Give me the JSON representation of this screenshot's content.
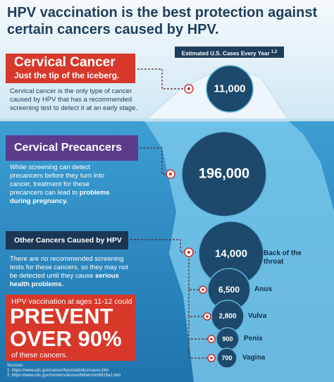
{
  "header": {
    "title": "HPV vaccination is the best protection against certain cancers caused by HPV."
  },
  "cases_label": {
    "text": "Estimated U.S. Cases Every Year",
    "superscript": "1,2"
  },
  "sections": [
    {
      "title": "Cervical Cancer",
      "subtitle": "Just the tip of the iceberg.",
      "text": "Cervical cancer is the only type of cancer caused by HPV that has a recommended screening test to detect it at an early stage."
    },
    {
      "title": "Cervical Precancers",
      "text": "While screening can detect precancers before they turn into cancer, treatment for these precancers can lead to",
      "emphasis": "problems during pregnancy."
    },
    {
      "title": "Other Cancers Caused by HPV",
      "text": "There are no recommended screening tests for these cancers, so they may not be detected until they cause",
      "emphasis": "serious health problems."
    }
  ],
  "circles": [
    {
      "value": "11,000"
    },
    {
      "value": "196,000"
    },
    {
      "value": "14,000",
      "label": "Back of the throat"
    },
    {
      "value": "6,500",
      "label": "Anus"
    },
    {
      "value": "2,800",
      "label": "Vulva"
    },
    {
      "value": "900",
      "label": "Penis"
    },
    {
      "value": "700",
      "label": "Vagina"
    }
  ],
  "callout": {
    "lead": "HPV vaccination at ages 11-12 could",
    "line1": "PREVENT",
    "line2": "OVER 90%",
    "tail": "of these cancers."
  },
  "sources": {
    "title": "Sources:",
    "items": [
      "1. https://www.cdc.gov/cancer/hpv/statistics/cases.htm",
      "2. https://www.cdc.gov/mmwr/volumes/68/wr/mm6815a1.htm"
    ]
  }
}
